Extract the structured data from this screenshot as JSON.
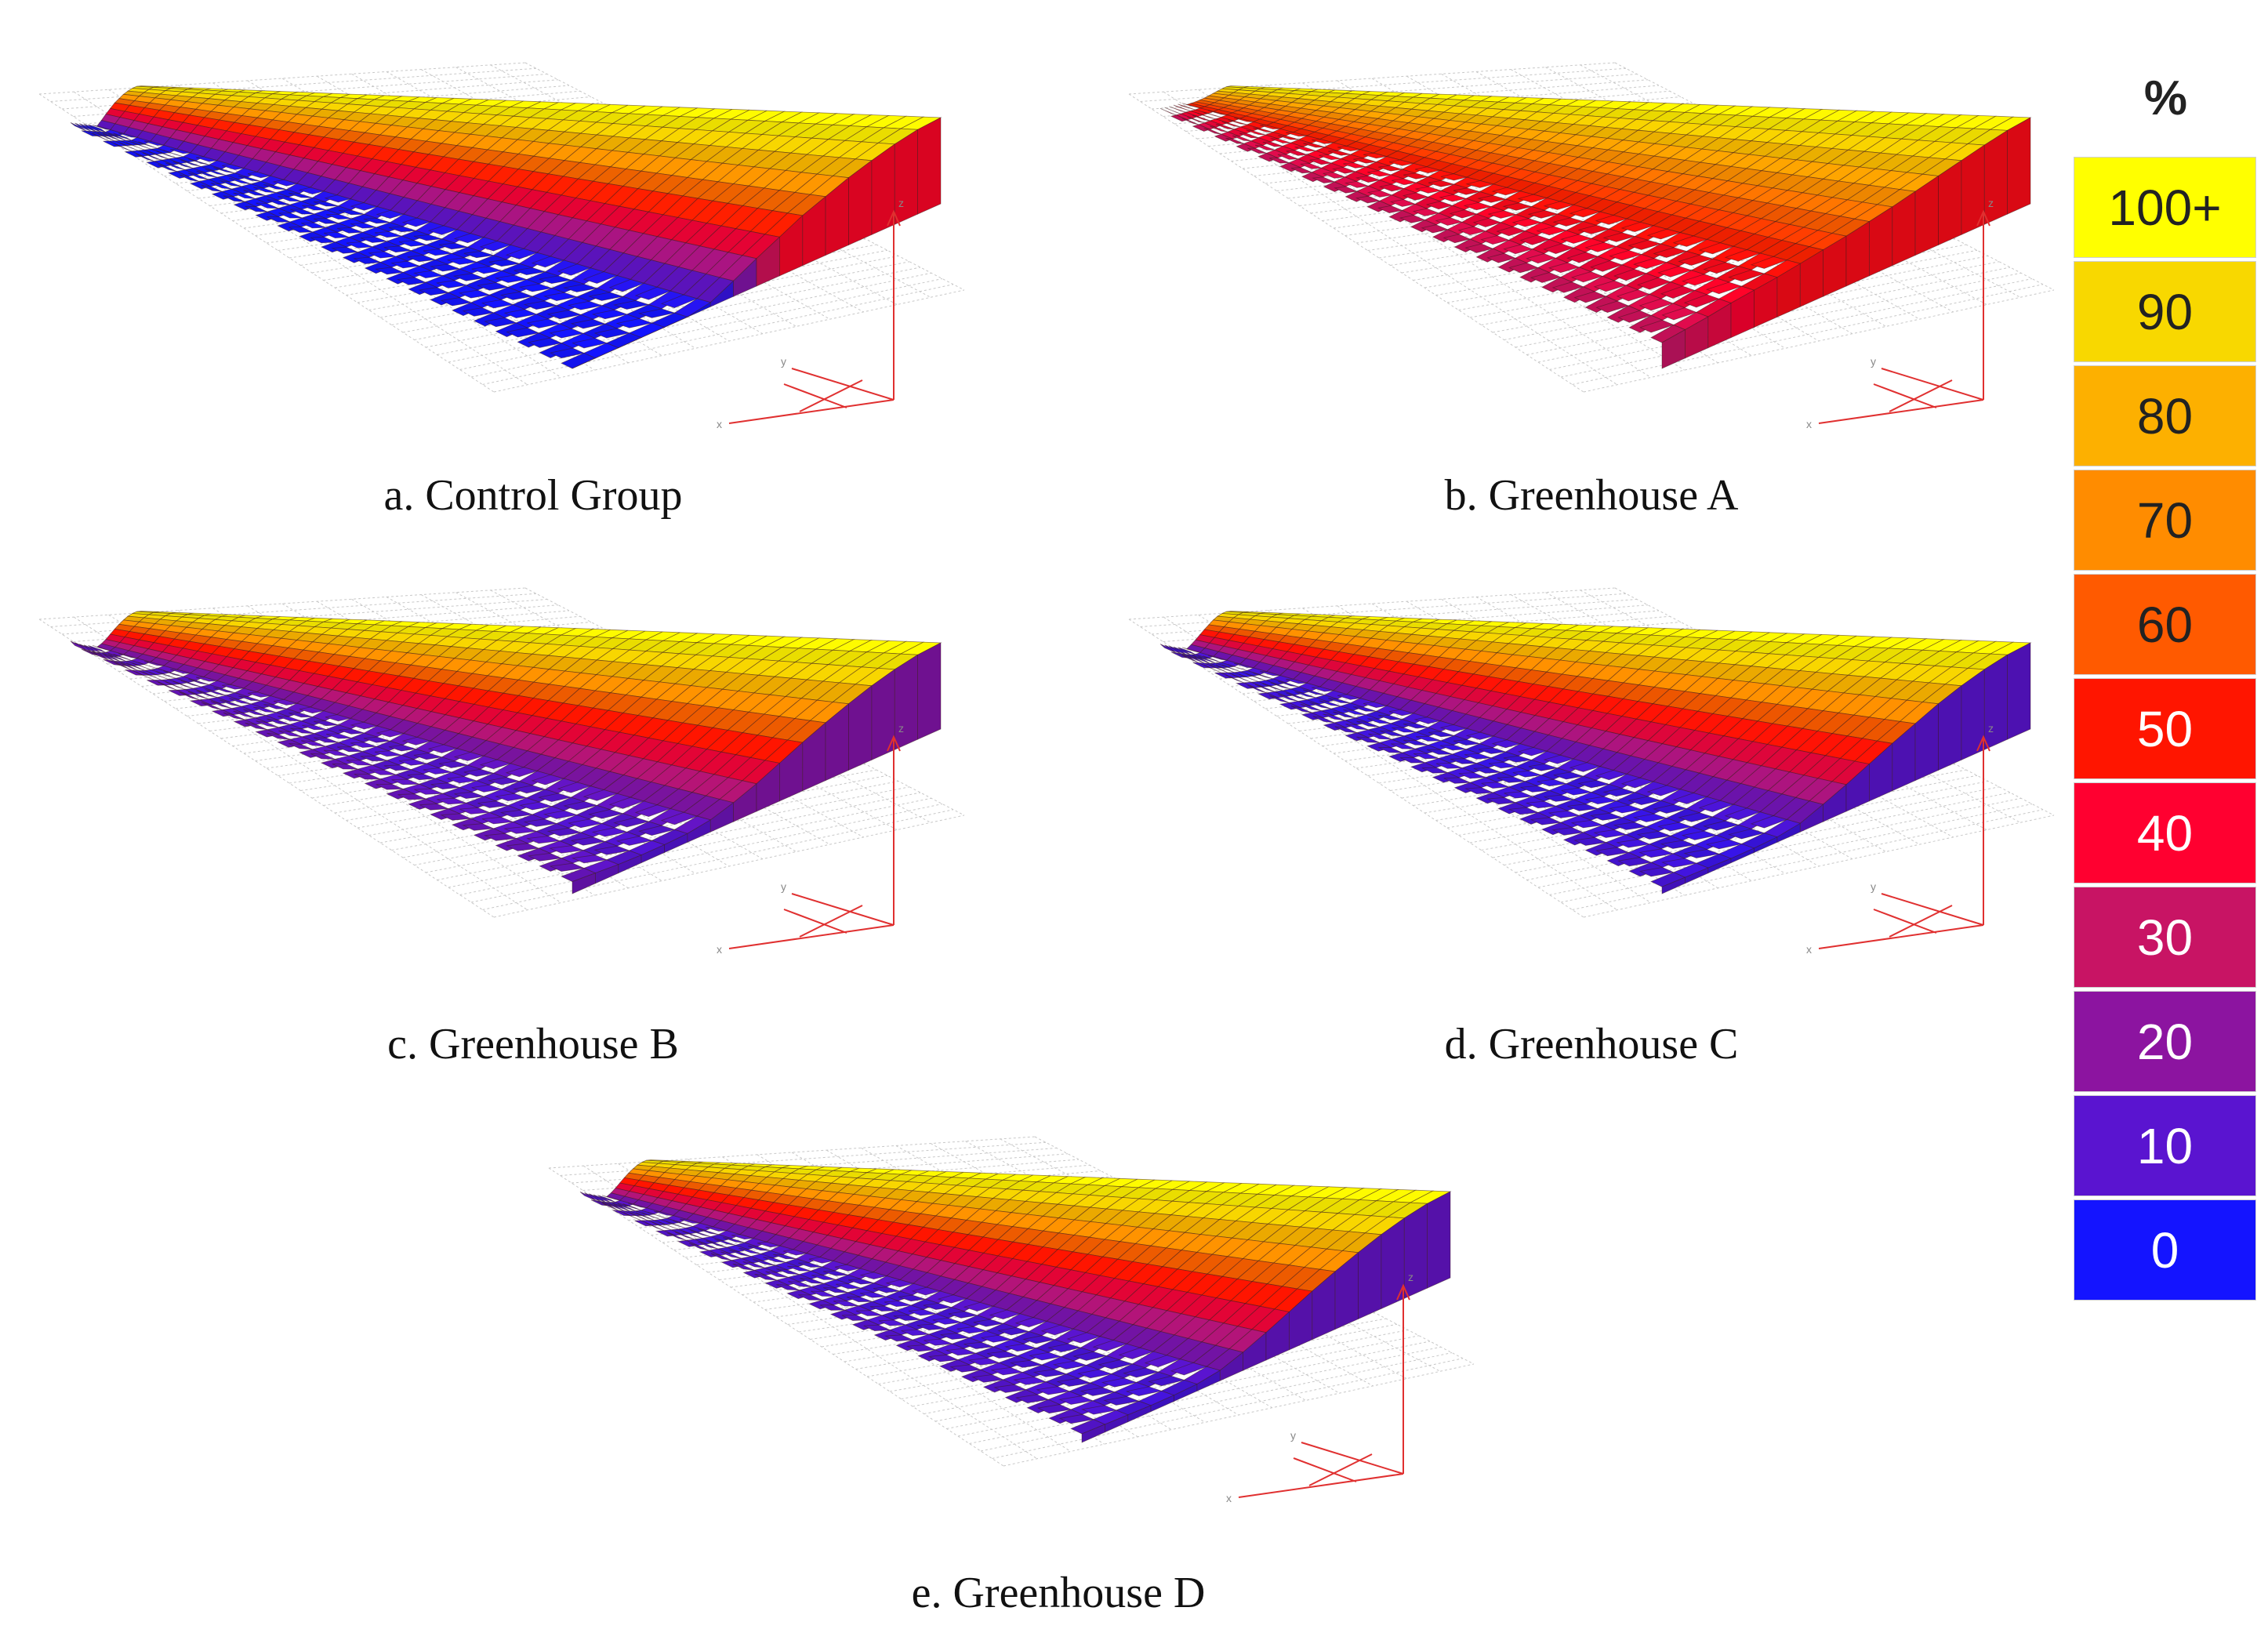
{
  "chart_data": {
    "type": "surface-3d",
    "legend": {
      "unit": "%",
      "levels": [
        {
          "label": "100+",
          "color": "#ffff00",
          "text_color": "#222222"
        },
        {
          "label": "90",
          "color": "#f8d800",
          "text_color": "#222222"
        },
        {
          "label": "80",
          "color": "#fdb000",
          "text_color": "#222222"
        },
        {
          "label": "70",
          "color": "#ff8c00",
          "text_color": "#222222"
        },
        {
          "label": "60",
          "color": "#ff5a00",
          "text_color": "#222222"
        },
        {
          "label": "50",
          "color": "#ff1500",
          "text_color": "#ffffff"
        },
        {
          "label": "40",
          "color": "#ff0030",
          "text_color": "#ffffff"
        },
        {
          "label": "30",
          "color": "#c81464",
          "text_color": "#ffffff"
        },
        {
          "label": "20",
          "color": "#8c14a0",
          "text_color": "#ffffff"
        },
        {
          "label": "10",
          "color": "#5a14d0",
          "text_color": "#ffffff"
        },
        {
          "label": "0",
          "color": "#1414ff",
          "text_color": "#ffffff"
        }
      ]
    },
    "axis_letters": {
      "z": "z",
      "y": "y",
      "x": "x"
    },
    "panels": [
      {
        "caption": "a. Control Group",
        "profile": [
          0,
          0,
          0,
          0,
          0,
          0,
          5,
          18,
          32,
          45,
          58,
          68,
          78,
          86,
          93,
          98,
          100
        ],
        "edge_level": 42
      },
      {
        "caption": "b. Greenhouse A",
        "profile": [
          30,
          33,
          36,
          40,
          43,
          46,
          50,
          54,
          58,
          63,
          68,
          74,
          80,
          86,
          92,
          97,
          100
        ],
        "edge_level": 45
      },
      {
        "caption": "c. Greenhouse B",
        "profile": [
          14,
          12,
          10,
          9,
          9,
          10,
          14,
          22,
          32,
          44,
          56,
          67,
          77,
          86,
          93,
          98,
          100
        ],
        "edge_level": 18
      },
      {
        "caption": "d. Greenhouse C",
        "profile": [
          8,
          7,
          6,
          5,
          5,
          6,
          10,
          20,
          31,
          43,
          55,
          66,
          77,
          86,
          93,
          98,
          100
        ],
        "edge_level": 10
      },
      {
        "caption": "e. Greenhouse D",
        "profile": [
          10,
          9,
          8,
          7,
          7,
          8,
          12,
          21,
          32,
          44,
          56,
          67,
          77,
          86,
          93,
          98,
          100
        ],
        "edge_level": 12
      }
    ]
  }
}
